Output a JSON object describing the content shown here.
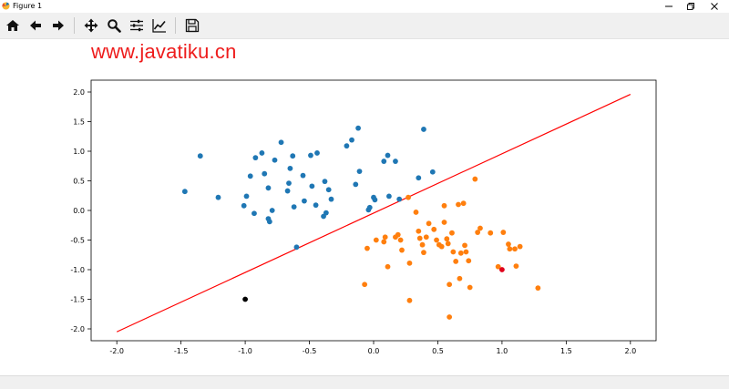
{
  "window": {
    "title": "Figure 1",
    "icons": [
      "matplotlib-icon",
      "minimize-icon",
      "restore-icon",
      "close-icon"
    ]
  },
  "toolbar": {
    "buttons": [
      "home-icon",
      "back-arrow-icon",
      "forward-arrow-icon",
      "pan-icon",
      "zoom-icon",
      "subplots-config-icon",
      "edit-axes-icon",
      "save-icon"
    ]
  },
  "watermark": "www.javatiku.cn",
  "colors": {
    "blue": "#1f77b4",
    "orange": "#ff7f0e",
    "red": "#d62728",
    "line": "#ff0000",
    "black": "#000000"
  },
  "chart_data": {
    "type": "scatter",
    "xlim": [
      -2.2,
      2.2
    ],
    "ylim": [
      -2.2,
      2.2
    ],
    "xticks": [
      "-2.0",
      "-1.5",
      "-1.0",
      "-0.5",
      "0.0",
      "0.5",
      "1.0",
      "1.5",
      "2.0"
    ],
    "yticks": [
      "2.0",
      "1.5",
      "1.0",
      "0.5",
      "0.0",
      "-0.5",
      "-1.0",
      "-1.5",
      "-2.0"
    ],
    "grid": false,
    "series": [
      {
        "color": "#1f77b4",
        "points": [
          [
            -1.47,
            0.32
          ],
          [
            -1.35,
            0.92
          ],
          [
            -1.21,
            0.22
          ],
          [
            -1.01,
            0.08
          ],
          [
            -0.99,
            0.24
          ],
          [
            -0.96,
            0.58
          ],
          [
            -0.92,
            0.89
          ],
          [
            -0.87,
            0.97
          ],
          [
            -0.85,
            0.62
          ],
          [
            -0.82,
            -0.14
          ],
          [
            -0.81,
            -0.19
          ],
          [
            -0.79,
            0.0
          ],
          [
            -0.77,
            0.85
          ],
          [
            -0.72,
            1.15
          ],
          [
            -0.67,
            0.33
          ],
          [
            -0.66,
            0.46
          ],
          [
            -0.65,
            0.71
          ],
          [
            -0.63,
            0.92
          ],
          [
            -0.62,
            0.06
          ],
          [
            -0.55,
            0.59
          ],
          [
            -0.54,
            0.16
          ],
          [
            -0.49,
            0.93
          ],
          [
            -0.48,
            0.41
          ],
          [
            -0.44,
            0.97
          ],
          [
            -0.39,
            -0.1
          ],
          [
            -0.38,
            0.49
          ],
          [
            -0.37,
            -0.04
          ],
          [
            -0.35,
            0.35
          ],
          [
            -0.33,
            0.19
          ],
          [
            -0.21,
            1.09
          ],
          [
            -0.17,
            1.19
          ],
          [
            -0.14,
            0.44
          ],
          [
            -0.12,
            1.39
          ],
          [
            -0.11,
            0.66
          ],
          [
            -0.04,
            0.01
          ],
          [
            -0.03,
            0.05
          ],
          [
            0.0,
            0.22
          ],
          [
            0.01,
            0.18
          ],
          [
            0.08,
            0.83
          ],
          [
            0.11,
            0.93
          ],
          [
            0.12,
            0.24
          ],
          [
            0.17,
            0.83
          ],
          [
            0.2,
            0.19
          ],
          [
            0.35,
            0.55
          ],
          [
            0.39,
            1.37
          ],
          [
            0.46,
            0.65
          ],
          [
            -0.6,
            -0.62
          ],
          [
            -0.93,
            -0.05
          ],
          [
            -0.82,
            0.38
          ],
          [
            -0.45,
            0.09
          ]
        ]
      },
      {
        "color": "#ff7f0e",
        "points": [
          [
            -0.07,
            -1.25
          ],
          [
            -0.05,
            -0.64
          ],
          [
            0.08,
            -0.53
          ],
          [
            0.09,
            -0.45
          ],
          [
            0.11,
            -0.95
          ],
          [
            0.17,
            -0.45
          ],
          [
            0.19,
            -0.41
          ],
          [
            0.21,
            -0.5
          ],
          [
            0.22,
            -0.67
          ],
          [
            0.27,
            0.22
          ],
          [
            0.28,
            -0.89
          ],
          [
            0.28,
            -1.52
          ],
          [
            0.33,
            -0.03
          ],
          [
            0.35,
            -0.35
          ],
          [
            0.36,
            -0.47
          ],
          [
            0.38,
            -0.58
          ],
          [
            0.39,
            -0.71
          ],
          [
            0.41,
            -0.45
          ],
          [
            0.43,
            -0.22
          ],
          [
            0.49,
            -0.5
          ],
          [
            0.51,
            -0.58
          ],
          [
            0.53,
            -0.61
          ],
          [
            0.55,
            0.08
          ],
          [
            0.55,
            -0.2
          ],
          [
            0.57,
            -0.48
          ],
          [
            0.58,
            -0.56
          ],
          [
            0.59,
            -1.25
          ],
          [
            0.59,
            -1.8
          ],
          [
            0.61,
            -0.38
          ],
          [
            0.62,
            -0.7
          ],
          [
            0.64,
            -0.86
          ],
          [
            0.66,
            0.1
          ],
          [
            0.68,
            -0.72
          ],
          [
            0.7,
            0.12
          ],
          [
            0.67,
            -1.15
          ],
          [
            0.71,
            -0.59
          ],
          [
            0.72,
            -0.7
          ],
          [
            0.74,
            -0.85
          ],
          [
            0.75,
            -1.3
          ],
          [
            0.79,
            0.53
          ],
          [
            0.81,
            -0.37
          ],
          [
            0.83,
            -0.3
          ],
          [
            0.91,
            -0.38
          ],
          [
            0.97,
            -0.95
          ],
          [
            1.01,
            -0.37
          ],
          [
            1.05,
            -0.57
          ],
          [
            1.06,
            -0.65
          ],
          [
            1.1,
            -0.65
          ],
          [
            1.11,
            -0.94
          ],
          [
            1.14,
            -0.61
          ],
          [
            1.28,
            -1.31
          ],
          [
            0.02,
            -0.5
          ],
          [
            0.47,
            -0.32
          ]
        ]
      },
      {
        "color": "#e0001b",
        "points": [
          [
            1.0,
            -1.0
          ]
        ]
      },
      {
        "color": "#000000",
        "points": [
          [
            -1.0,
            -1.5
          ]
        ]
      }
    ],
    "line": {
      "color": "#ff0000",
      "points": [
        [
          -2.0,
          -2.05
        ],
        [
          2.0,
          1.96
        ]
      ]
    }
  }
}
